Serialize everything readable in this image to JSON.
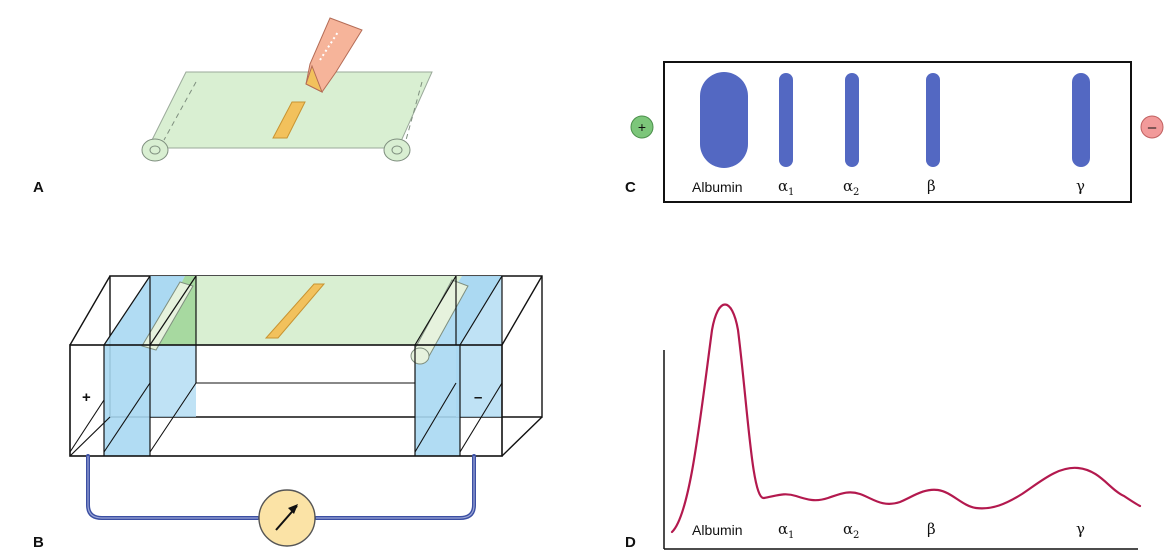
{
  "panels": {
    "a": "A",
    "b": "B",
    "c": "C",
    "d": "D"
  },
  "tank_signs": {
    "anode": "+",
    "cathode": "–"
  },
  "strip_fractions": [
    {
      "name": "Albumin",
      "sub": ""
    },
    {
      "name": "α",
      "sub": "1"
    },
    {
      "name": "α",
      "sub": "2"
    },
    {
      "name": "β",
      "sub": ""
    },
    {
      "name": "γ",
      "sub": ""
    }
  ],
  "electrode_symbols": {
    "positive": "+",
    "negative": "–"
  },
  "densitometer_labels": [
    {
      "name": "Albumin",
      "sub": ""
    },
    {
      "name": "α",
      "sub": "1"
    },
    {
      "name": "α",
      "sub": "2"
    },
    {
      "name": "β",
      "sub": ""
    },
    {
      "name": "γ",
      "sub": ""
    }
  ],
  "colors": {
    "paper": "#d9efd2",
    "buffer": "#a9d8f2",
    "sample": "#f2c15c",
    "band": "#5368c2",
    "curve": "#b3194e",
    "wire": "#3b4fa3",
    "meter": "#fbe3a6",
    "anode": "#7cc67a",
    "cathode": "#f29a9a"
  }
}
